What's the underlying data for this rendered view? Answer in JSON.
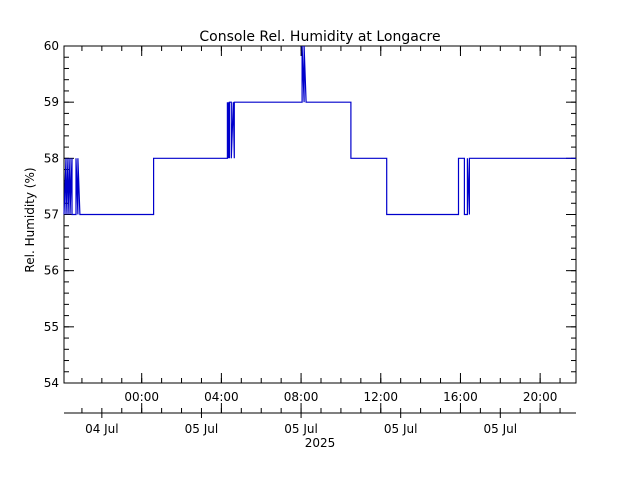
{
  "chart_data": {
    "type": "line",
    "title": "Console Rel. Humidity at Longacre",
    "ylabel": "Rel. Humidity (%)",
    "xlabel": "2025",
    "ylim": [
      54,
      60
    ],
    "yticks": [
      54,
      55,
      56,
      57,
      58,
      59,
      60
    ],
    "xlim_hours": [
      -3.9,
      21.8
    ],
    "time_ticks": [
      {
        "hour": 0,
        "label": "00:00"
      },
      {
        "hour": 4,
        "label": "04:00"
      },
      {
        "hour": 8,
        "label": "08:00"
      },
      {
        "hour": 12,
        "label": "12:00"
      },
      {
        "hour": 16,
        "label": "16:00"
      },
      {
        "hour": 20,
        "label": "20:00"
      }
    ],
    "date_labels": [
      {
        "hour": -2.0,
        "label": "04 Jul"
      },
      {
        "hour": 3.0,
        "label": "05 Jul"
      },
      {
        "hour": 8.0,
        "label": "05 Jul"
      },
      {
        "hour": 13.0,
        "label": "05 Jul"
      },
      {
        "hour": 18.0,
        "label": "05 Jul"
      }
    ],
    "grid": false,
    "line_color": "#0000cc",
    "series": [
      {
        "x": [
          -3.9,
          -3.8,
          -3.8,
          -3.7,
          -3.7,
          -3.6,
          -3.6,
          -3.5,
          -3.5,
          -3.3,
          -3.3,
          -3.2,
          -3.2,
          -3.1,
          -3.1,
          0.6,
          0.6,
          4.3,
          4.3,
          4.35,
          4.35,
          4.4,
          4.4,
          4.5,
          4.5,
          4.6,
          4.6,
          4.65,
          4.65,
          4.7,
          4.7,
          8.05,
          8.05,
          8.15,
          8.15,
          8.25,
          8.25,
          10.5,
          10.5,
          12.3,
          12.3,
          15.9,
          15.9,
          16.2,
          16.2,
          16.35,
          16.35,
          16.45,
          16.45,
          16.55,
          16.55,
          21.8
        ],
        "y": [
          57,
          58,
          57,
          58,
          57,
          58,
          57,
          58,
          57,
          57,
          58,
          57,
          58,
          57,
          57,
          57,
          58,
          58,
          59,
          58,
          59,
          58,
          59,
          59,
          58,
          59,
          59,
          58,
          59,
          59,
          59,
          59,
          60,
          59,
          60,
          59,
          59,
          59,
          58,
          58,
          57,
          57,
          58,
          58,
          57,
          57,
          58,
          57,
          58,
          58,
          58,
          58
        ]
      }
    ]
  }
}
